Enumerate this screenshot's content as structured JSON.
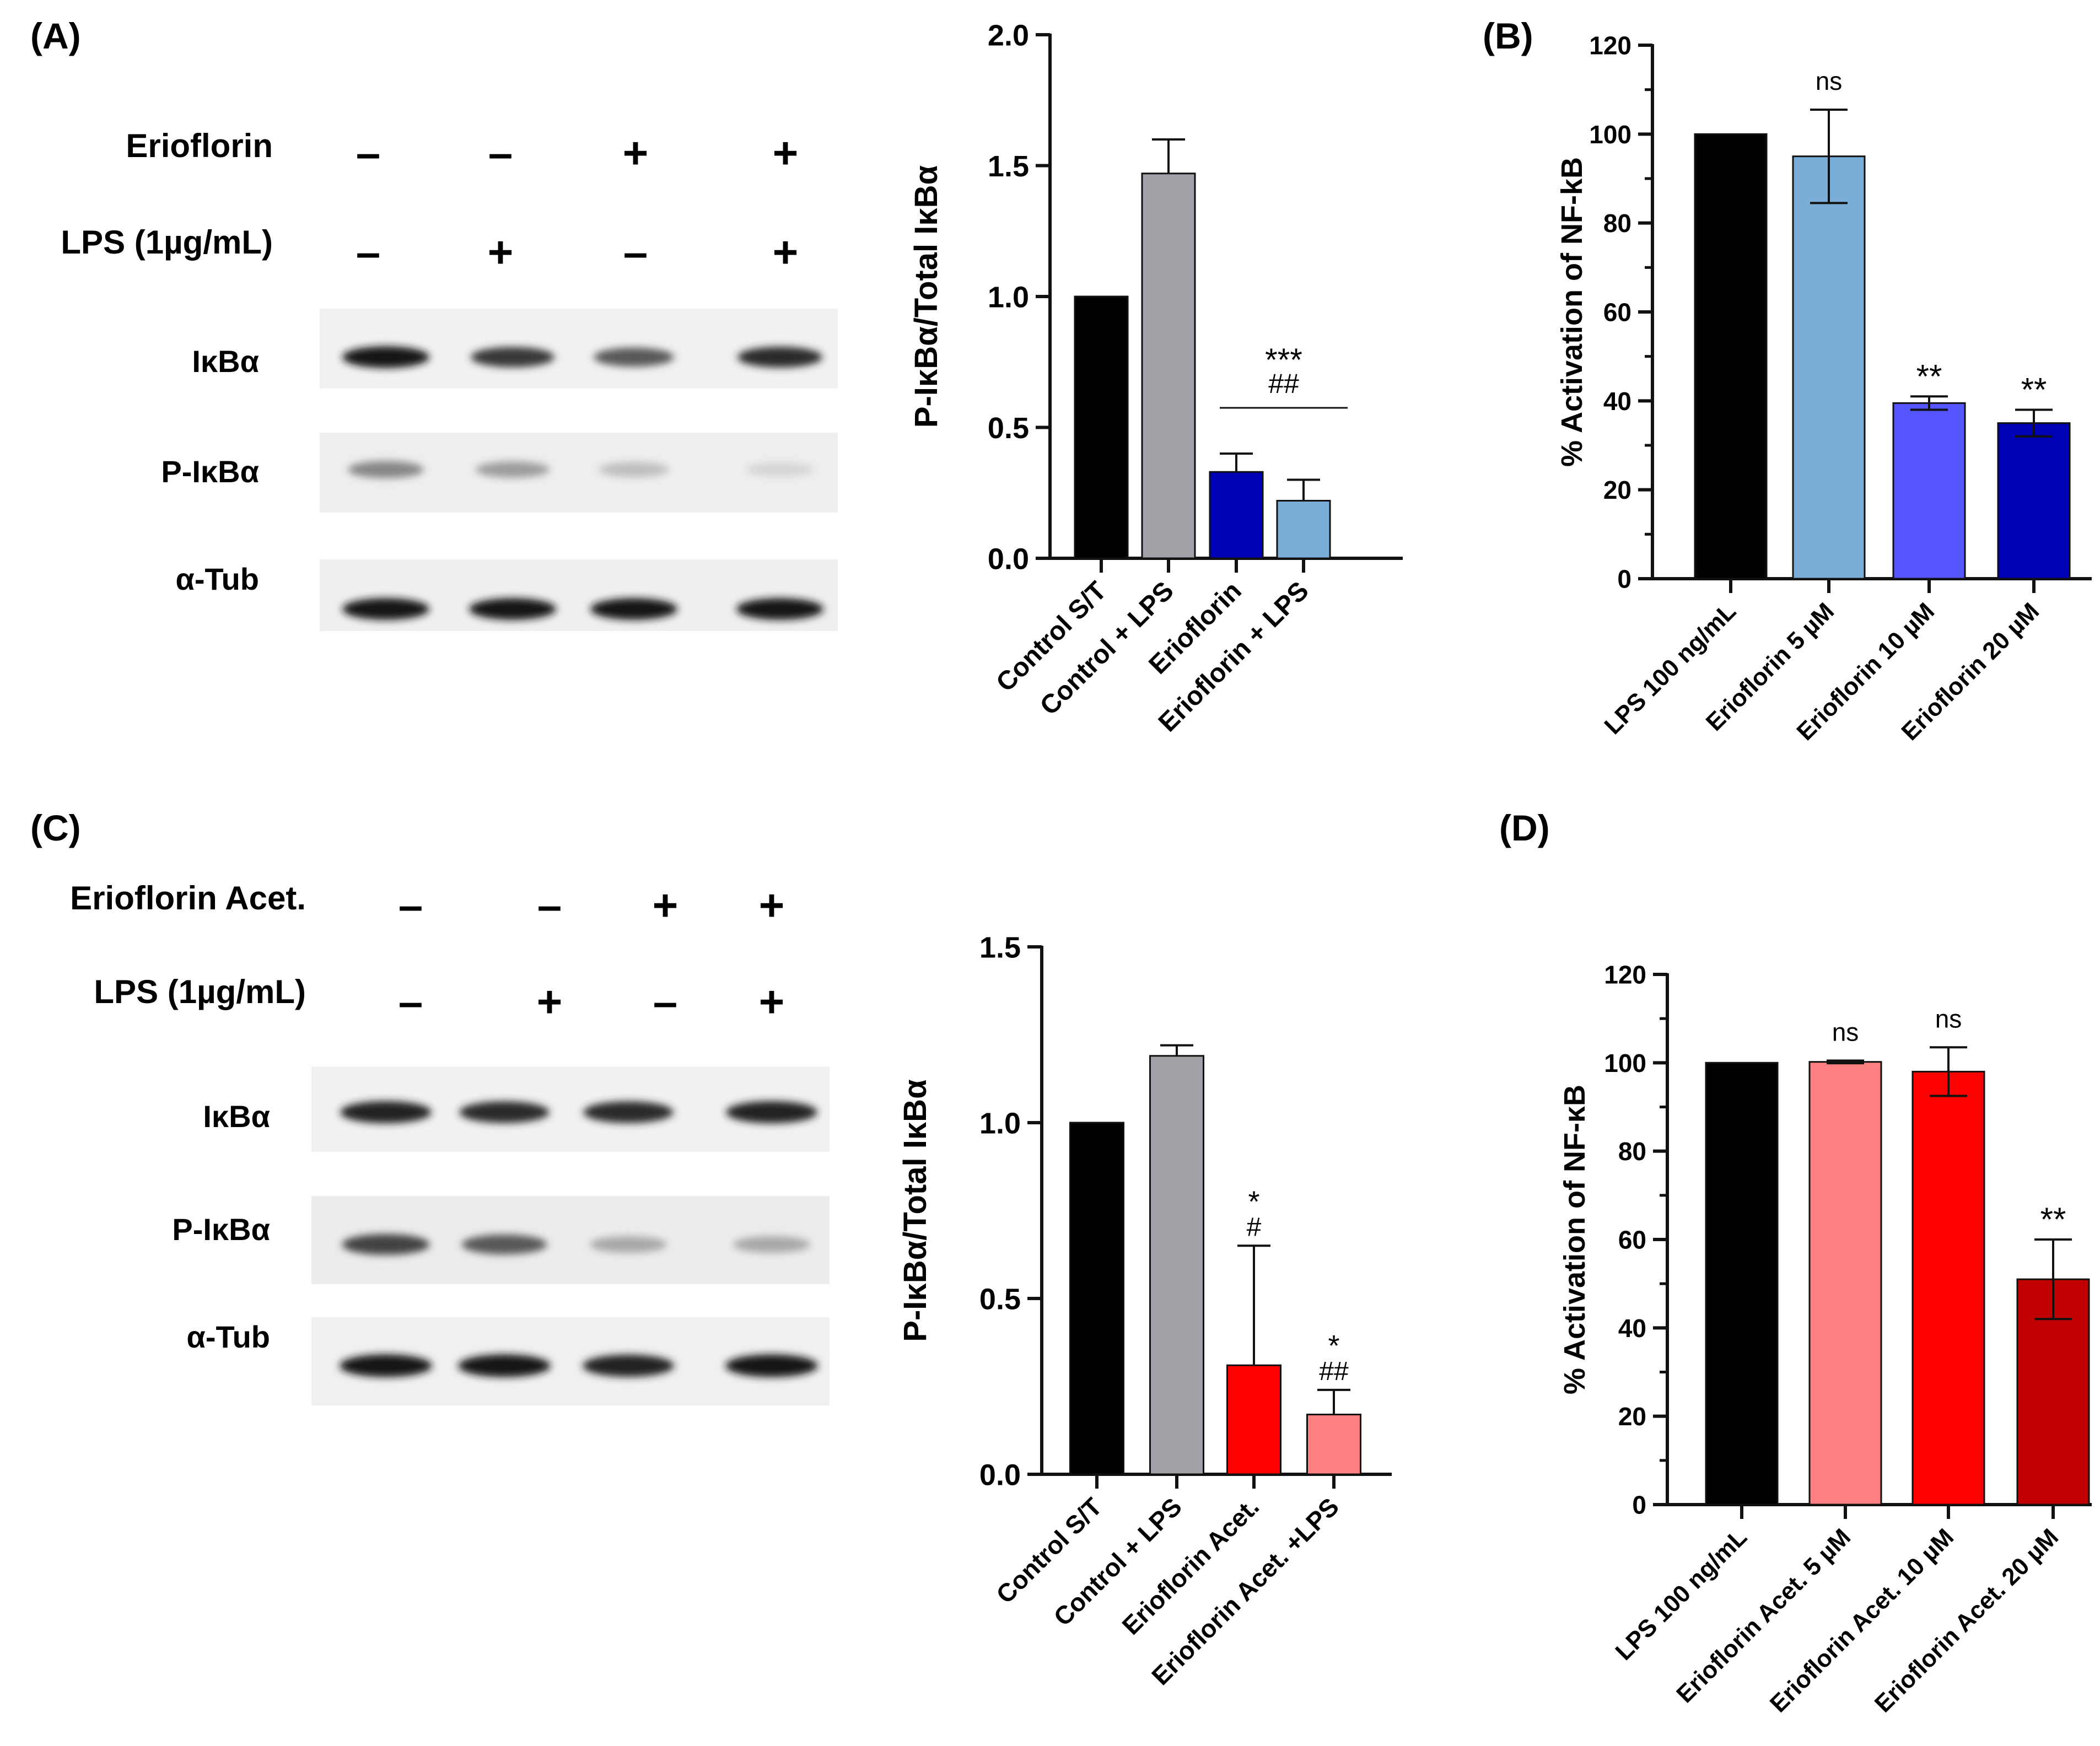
{
  "panel_labels": {
    "a": "(A)",
    "b": "(B)",
    "c": "(C)",
    "d": "(D)"
  },
  "blot_a": {
    "treatments": [
      {
        "label": "Erioflorin",
        "signs": [
          "–",
          "–",
          "+",
          "+"
        ]
      },
      {
        "label": "LPS (1µg/mL)",
        "signs": [
          "–",
          "+",
          "–",
          "+"
        ]
      }
    ],
    "rows": [
      {
        "label": "IκBα",
        "intensities": [
          0.95,
          0.8,
          0.65,
          0.85
        ]
      },
      {
        "label": "P-IκBα",
        "intensities": [
          0.45,
          0.35,
          0.2,
          0.1
        ]
      },
      {
        "label": "α-Tub",
        "intensities": [
          0.95,
          0.95,
          0.95,
          0.95
        ]
      }
    ]
  },
  "blot_c": {
    "treatments": [
      {
        "label": "Erioflorin Acet.",
        "signs": [
          "–",
          "–",
          "+",
          "+"
        ]
      },
      {
        "label": "LPS (1µg/mL)",
        "signs": [
          "–",
          "+",
          "–",
          "+"
        ]
      }
    ],
    "rows": [
      {
        "label": "IκBα",
        "intensities": [
          0.9,
          0.85,
          0.85,
          0.9
        ]
      },
      {
        "label": "P-IκBα",
        "intensities": [
          0.75,
          0.65,
          0.3,
          0.3
        ]
      },
      {
        "label": "α-Tub",
        "intensities": [
          0.95,
          0.95,
          0.9,
          0.95
        ]
      }
    ]
  },
  "chart_data": [
    {
      "id": "A",
      "type": "bar",
      "ylabel": "P-IκBα/Total IκBα",
      "ylim": [
        0,
        2.0
      ],
      "yticks": [
        0.0,
        0.5,
        1.0,
        1.5,
        2.0
      ],
      "ytick_labels": [
        "0.0",
        "0.5",
        "1.0",
        "1.5",
        "2.0"
      ],
      "categories": [
        "Control S/T",
        "Control + LPS",
        "Erioflorin",
        "Erioflorin + LPS"
      ],
      "values": [
        1.0,
        1.47,
        0.33,
        0.22
      ],
      "errors": [
        0,
        0.13,
        0.07,
        0.08
      ],
      "colors": [
        "#000000",
        "#a0a0a6",
        "#0000b4",
        "#7aaed8"
      ],
      "annotations": {
        "bracket": [
          "***",
          "##"
        ]
      }
    },
    {
      "id": "B",
      "type": "bar",
      "ylabel": "% Activation of NF-kB",
      "ylim": [
        0,
        120
      ],
      "yticks": [
        0,
        20,
        40,
        60,
        80,
        100,
        120
      ],
      "ytick_labels": [
        "0",
        "20",
        "40",
        "60",
        "80",
        "100",
        "120"
      ],
      "categories": [
        "LPS 100 ng/mL",
        "Erioflorin 5 µM",
        "Erioflorin 10 µM",
        "Erioflorin 20 µM"
      ],
      "values": [
        100,
        95,
        39.5,
        35
      ],
      "errors": [
        0,
        10.5,
        1.5,
        3
      ],
      "colors": [
        "#000000",
        "#7aaed8",
        "#5555ff",
        "#0000b4"
      ],
      "annotations": [
        "",
        "ns",
        "**",
        "**"
      ]
    },
    {
      "id": "C",
      "type": "bar",
      "ylabel": "P-IκBα/Total IκBα",
      "ylim": [
        0,
        1.5
      ],
      "yticks": [
        0.0,
        0.5,
        1.0,
        1.5
      ],
      "ytick_labels": [
        "0.0",
        "0.5",
        "1.0",
        "1.5"
      ],
      "categories": [
        "Control S/T",
        "Control + LPS",
        "Erioflorin Acet.",
        "Erioflorin Acet. +LPS"
      ],
      "values": [
        1.0,
        1.19,
        0.31,
        0.17
      ],
      "errors": [
        0,
        0.03,
        0.34,
        0.07
      ],
      "colors": [
        "#000000",
        "#a0a0a6",
        "#ff0000",
        "#ff8080"
      ],
      "annotations": [
        [],
        [],
        [
          "*",
          "#"
        ],
        [
          "*",
          "##"
        ]
      ]
    },
    {
      "id": "D",
      "type": "bar",
      "ylabel": "% Activation of NF-κB",
      "ylim": [
        0,
        120
      ],
      "yticks": [
        0,
        20,
        40,
        60,
        80,
        100,
        120
      ],
      "ytick_labels": [
        "0",
        "20",
        "40",
        "60",
        "80",
        "100",
        "120"
      ],
      "categories": [
        "LPS 100 ng/mL",
        "Erioflorin Acet. 5 µM",
        "Erioflorin Acet. 10 µM",
        "Erioflorin Acet. 20 µM"
      ],
      "values": [
        100,
        100.2,
        98,
        51
      ],
      "errors": [
        0,
        0.3,
        5.5,
        9
      ],
      "colors": [
        "#000000",
        "#ff8080",
        "#ff0000",
        "#c00000"
      ],
      "annotations": [
        "",
        "ns",
        "ns",
        "**"
      ]
    }
  ]
}
